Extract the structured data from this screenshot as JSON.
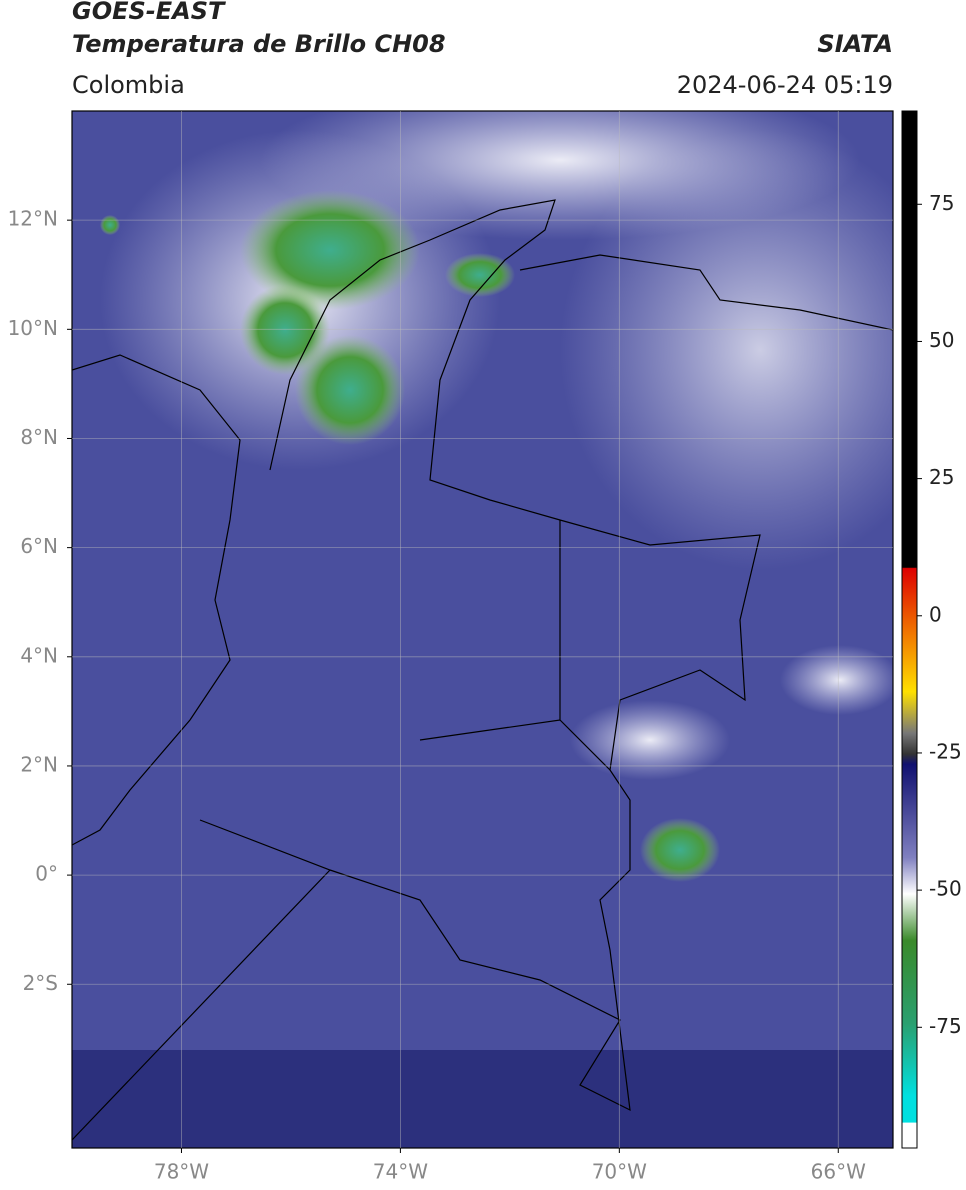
{
  "header": {
    "title": "GOES-EAST",
    "subtitle": "Temperatura de Brillo CH08",
    "source": "SIATA",
    "region": "Colombia",
    "datetime": "2024-06-24 05:19"
  },
  "map": {
    "xlim": [
      -80,
      -65
    ],
    "ylim": [
      -5,
      14
    ],
    "xticks": [
      {
        "value": -78,
        "label": "78°W"
      },
      {
        "value": -74,
        "label": "74°W"
      },
      {
        "value": -70,
        "label": "70°W"
      },
      {
        "value": -66,
        "label": "66°W"
      }
    ],
    "yticks": [
      {
        "value": 12,
        "label": "12°N"
      },
      {
        "value": 10,
        "label": "10°N"
      },
      {
        "value": 8,
        "label": "8°N"
      },
      {
        "value": 6,
        "label": "6°N"
      },
      {
        "value": 4,
        "label": "4°N"
      },
      {
        "value": 2,
        "label": "2°N"
      },
      {
        "value": 0,
        "label": "0°"
      },
      {
        "value": -2,
        "label": "2°S"
      }
    ],
    "grid": true
  },
  "colorbar": {
    "lim": [
      -97,
      92
    ],
    "ticks": [
      75,
      50,
      25,
      0,
      -25,
      -50,
      -75
    ]
  }
}
